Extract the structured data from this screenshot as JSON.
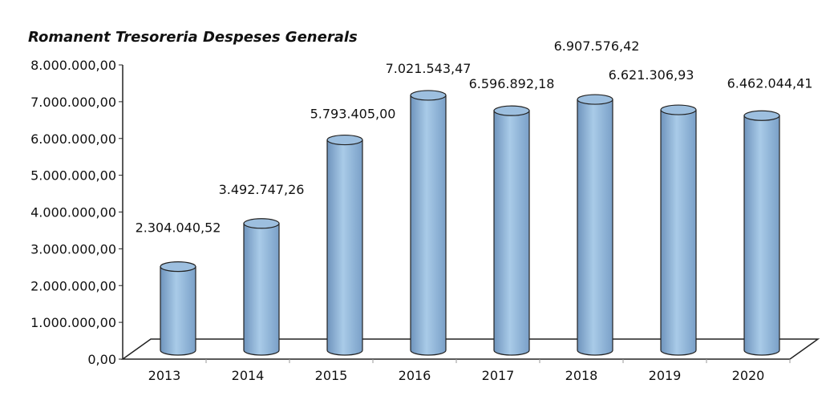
{
  "chart_data": {
    "type": "bar",
    "style": "3d-cylinder",
    "title": "Romanent Tresoreria Despeses Generals",
    "xlabel": "",
    "ylabel": "",
    "categories": [
      "2013",
      "2014",
      "2015",
      "2016",
      "2017",
      "2018",
      "2019",
      "2020"
    ],
    "values": [
      2304040.52,
      3492747.26,
      5793405.0,
      7021543.47,
      6596892.18,
      6907576.42,
      6621306.93,
      6462044.41
    ],
    "data_labels": [
      "2.304.040,52",
      "3.492.747,26",
      "5.793.405,00",
      "7.021.543,47",
      "6.596.892,18",
      "6.907.576,42",
      "6.621.306,93",
      "6.462.044,41"
    ],
    "ylim": [
      0,
      8000000
    ],
    "yticks": [
      "0,00",
      "1.000.000,00",
      "2.000.000,00",
      "3.000.000,00",
      "4.000.000,00",
      "5.000.000,00",
      "6.000.000,00",
      "7.000.000,00",
      "8.000.000,00"
    ],
    "grid": false,
    "legend": "none",
    "bar_color": "#9dbfdf"
  }
}
